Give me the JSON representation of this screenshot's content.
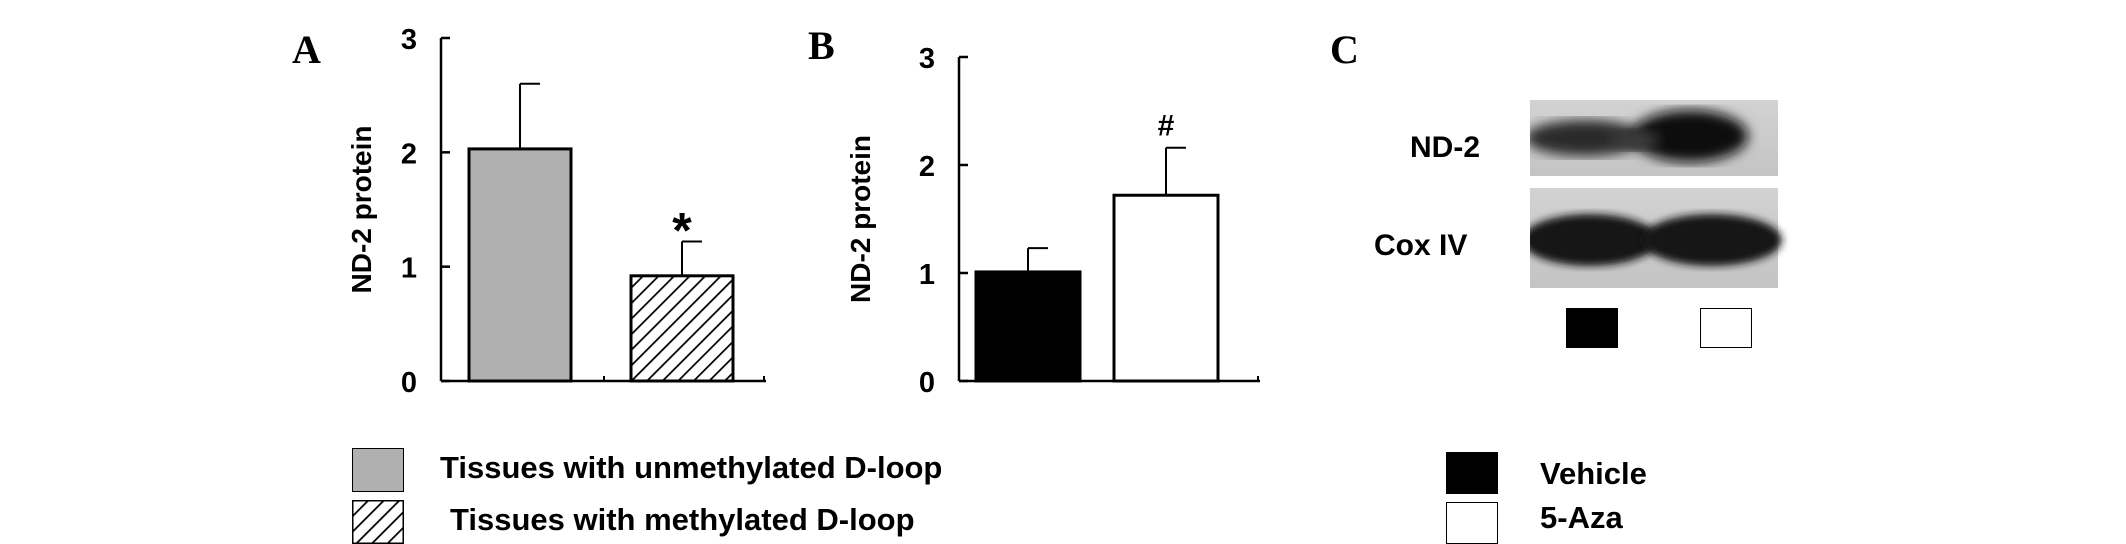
{
  "panels": {
    "a": "A",
    "b": "B",
    "c": "C"
  },
  "colors": {
    "unmethylated": "#b0b0b0",
    "vehicle": "#000000",
    "aza": "#ffffff"
  },
  "chart_data": [
    {
      "type": "bar",
      "panel": "A",
      "ylabel": "ND-2 protein",
      "ylim": [
        0,
        3
      ],
      "yticks": [
        "0",
        "1",
        "2",
        "3"
      ],
      "series": [
        {
          "name": "Tissues with unmethylated D-loop",
          "value": 2.03,
          "error": 0.57,
          "fill": "gray"
        },
        {
          "name": "Tissues with methylated D-loop",
          "value": 0.92,
          "error": 0.3,
          "fill": "hatched",
          "annotation": "*"
        }
      ]
    },
    {
      "type": "bar",
      "panel": "B",
      "ylabel": "ND-2 protein",
      "ylim": [
        0,
        3
      ],
      "yticks": [
        "0",
        "1",
        "2",
        "3"
      ],
      "series": [
        {
          "name": "Vehicle",
          "value": 1.01,
          "error": 0.22,
          "fill": "black"
        },
        {
          "name": "5-Aza",
          "value": 1.72,
          "error": 0.44,
          "fill": "white",
          "annotation": "#"
        }
      ]
    }
  ],
  "blot": {
    "labels": [
      "ND-2",
      "Cox IV"
    ],
    "lanes": [
      "Vehicle",
      "5-Aza"
    ]
  },
  "legend_a": [
    "Tissues with unmethylated D-loop",
    "Tissues with methylated D-loop"
  ],
  "legend_c": [
    "Vehicle",
    "5-Aza"
  ]
}
